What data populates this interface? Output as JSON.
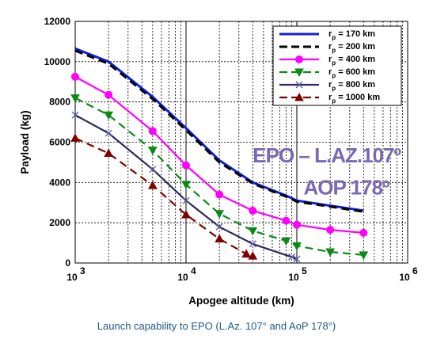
{
  "caption": "Launch capability to EPO (L.Az. 107° and AoP 178°)",
  "chart_data": {
    "type": "line",
    "title": "",
    "xlabel": "Apogee altitude (km)",
    "ylabel": "Payload (kg)",
    "x_scale": "log",
    "xlim": [
      1000,
      1000000
    ],
    "ylim": [
      0,
      12000
    ],
    "x_ticks": [
      {
        "value": 1000,
        "base": "10",
        "exp": "3"
      },
      {
        "value": 10000,
        "base": "10",
        "exp": "4"
      },
      {
        "value": 100000,
        "base": "10",
        "exp": "5"
      },
      {
        "value": 1000000,
        "base": "10",
        "exp": "6"
      }
    ],
    "y_ticks": [
      0,
      2000,
      4000,
      6000,
      8000,
      10000,
      12000
    ],
    "grid": true,
    "legend_position": "top-right",
    "annotations": [
      {
        "text": "EPO – L.AZ.107º",
        "x": 40000,
        "y": 5000
      },
      {
        "text": "AOP 178º",
        "x": 115000,
        "y": 3400
      }
    ],
    "series": [
      {
        "name_main": "r",
        "name_sub": "p",
        "name_tail": " = 170 km",
        "color": "#1020d8",
        "dash": "solid",
        "marker": "none",
        "x": [
          1000,
          2000,
          5000,
          10000,
          20000,
          40000,
          80000,
          100000,
          200000,
          400000
        ],
        "y": [
          10650,
          10000,
          8250,
          6700,
          5100,
          4000,
          3350,
          3100,
          2850,
          2600
        ]
      },
      {
        "name_main": "r",
        "name_sub": "p",
        "name_tail": " = 200 km",
        "color": "#000000",
        "dash": "dash",
        "marker": "none",
        "x": [
          1000,
          2000,
          5000,
          10000,
          20000,
          40000,
          80000,
          100000,
          200000,
          400000
        ],
        "y": [
          10550,
          9900,
          8150,
          6600,
          5000,
          3950,
          3300,
          3050,
          2800,
          2550
        ]
      },
      {
        "name_main": "r",
        "name_sub": "p",
        "name_tail": " = 400 km",
        "color": "#ff00ff",
        "dash": "solid",
        "marker": "circle",
        "x": [
          1000,
          2000,
          5000,
          10000,
          20000,
          40000,
          80000,
          100000,
          200000,
          400000
        ],
        "y": [
          9250,
          8350,
          6550,
          4850,
          3400,
          2600,
          2100,
          1900,
          1650,
          1500
        ]
      },
      {
        "name_main": "r",
        "name_sub": "p",
        "name_tail": " = 600 km",
        "color": "#0a8a14",
        "dash": "dash",
        "marker": "triangle-down",
        "x": [
          1000,
          2000,
          5000,
          10000,
          20000,
          40000,
          80000,
          100000,
          200000,
          400000
        ],
        "y": [
          8200,
          7350,
          5600,
          3900,
          2450,
          1600,
          1100,
          850,
          550,
          400
        ]
      },
      {
        "name_main": "r",
        "name_sub": "p",
        "name_tail": " = 800 km",
        "color": "#2a2a5e",
        "dash": "solid",
        "marker": "x",
        "x": [
          1000,
          2000,
          5000,
          10000,
          20000,
          40000,
          90000,
          100000
        ],
        "y": [
          7350,
          6450,
          4650,
          3100,
          1800,
          950,
          300,
          200
        ]
      },
      {
        "name_main": "r",
        "name_sub": "p",
        "name_tail": " = 1000 km",
        "color": "#800000",
        "dash": "dash",
        "marker": "triangle-up",
        "x": [
          1000,
          2000,
          5000,
          10000,
          20000,
          35000,
          40000
        ],
        "y": [
          6200,
          5450,
          3850,
          2400,
          1200,
          450,
          350
        ]
      }
    ]
  }
}
